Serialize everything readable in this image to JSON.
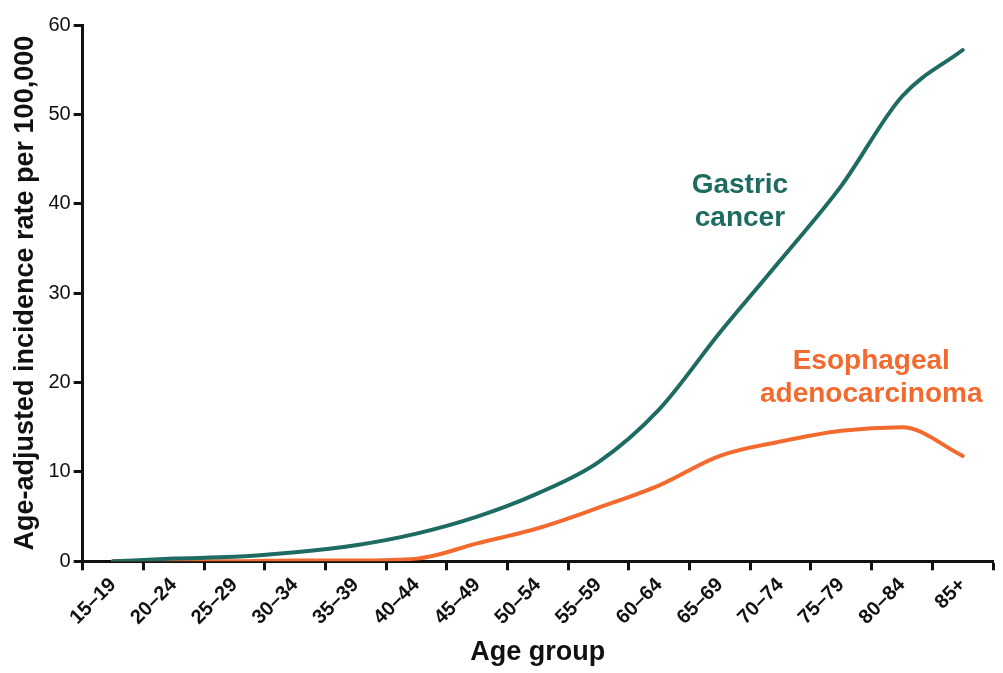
{
  "chart_data": {
    "type": "line",
    "xlabel": "Age group",
    "ylabel": "Age-adjusted incidence rate per 100,000",
    "categories": [
      "15–19",
      "20–24",
      "25–29",
      "30–34",
      "35–39",
      "40–44",
      "45–49",
      "50–54",
      "55–59",
      "60–64",
      "65–69",
      "70–74",
      "75–79",
      "80–84",
      "85+"
    ],
    "series": [
      {
        "name": "Gastric cancer",
        "color": "#1e6b62",
        "values": [
          0,
          0.3,
          0.5,
          1.0,
          1.8,
          3.1,
          5.0,
          7.6,
          11.1,
          17,
          25.6,
          33.7,
          42,
          52,
          57.2
        ]
      },
      {
        "name": "Esophageal adenocarcinoma",
        "color": "#f26a2e",
        "values": [
          0,
          0,
          0,
          0.1,
          0.1,
          0.3,
          2.0,
          3.7,
          6.0,
          8.5,
          11.8,
          13.4,
          14.6,
          15.0,
          11.8
        ]
      }
    ],
    "ylim": [
      0,
      60
    ],
    "yticks": [
      0,
      10,
      20,
      30,
      40,
      50,
      60
    ],
    "grid": false,
    "legend": false,
    "marker": "none",
    "line_style": "solid"
  }
}
